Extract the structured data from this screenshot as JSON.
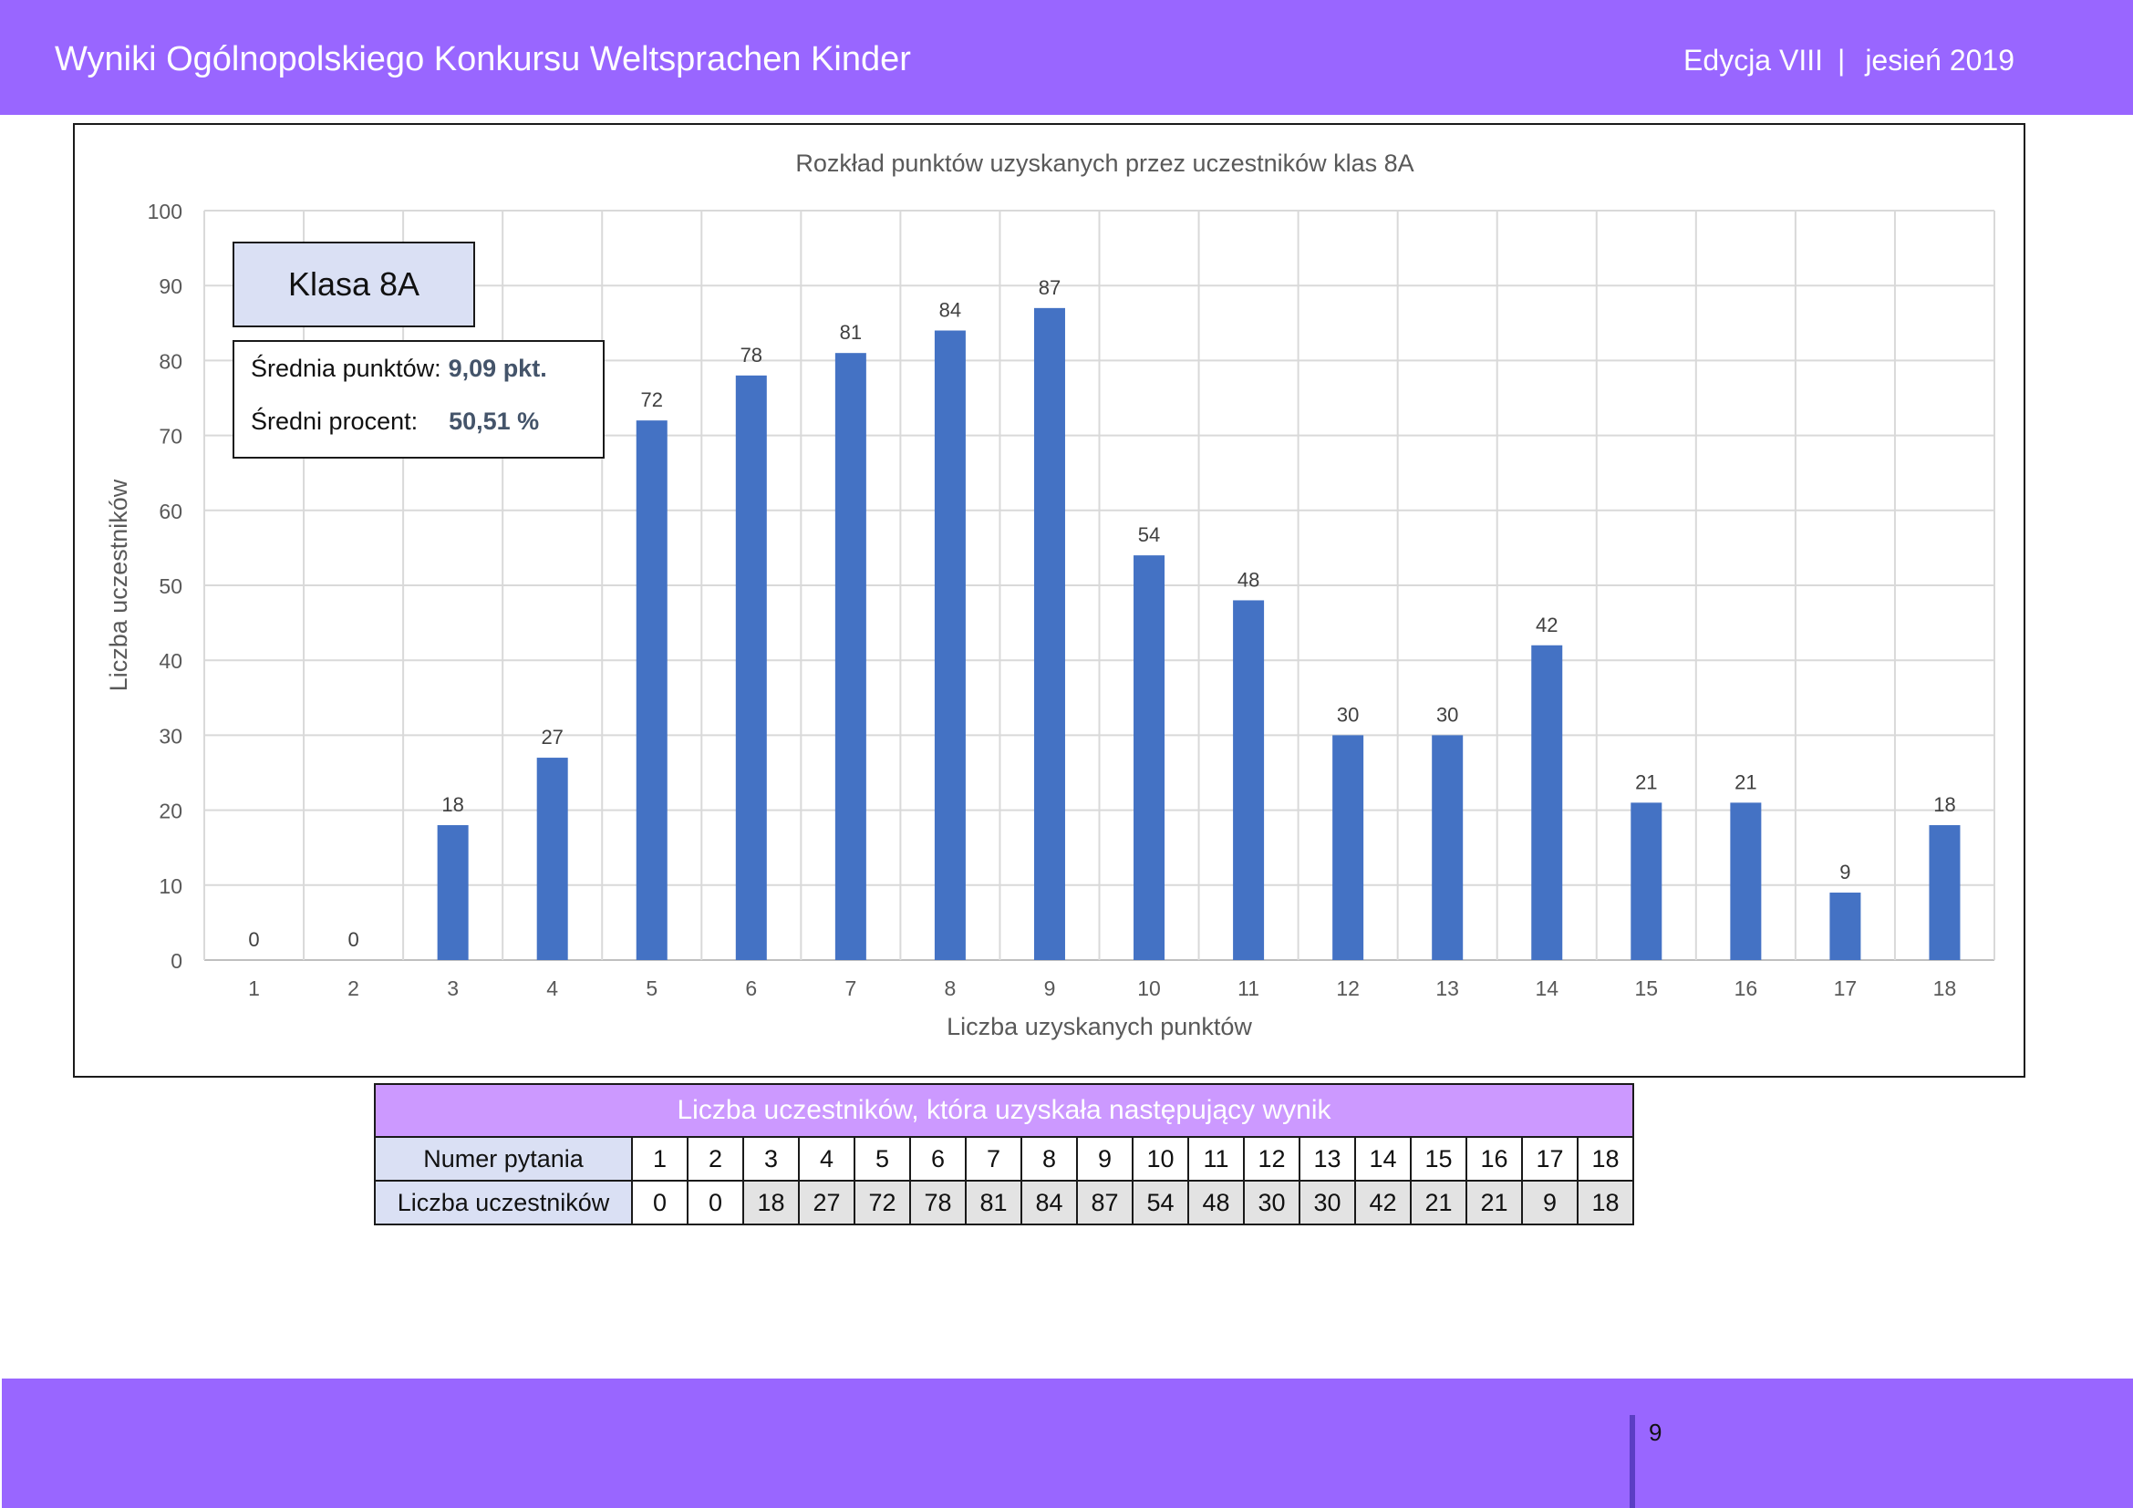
{
  "header": {
    "title": "Wyniki Ogólnopolskiego Konkursu Weltsprachen Kinder",
    "edition": "Edycja VIII",
    "season": "jesień 2019"
  },
  "class_box": {
    "label": "Klasa 8A"
  },
  "stats": {
    "avg_points_label": "Średnia punktów:",
    "avg_points_value": "9,09 pkt.",
    "avg_percent_label": "Średni procent:",
    "avg_percent_value": "50,51 %"
  },
  "chart_data": {
    "type": "bar",
    "title": "Rozkład punktów uzyskanych przez uczestników klas 8A",
    "xlabel": "Liczba uzyskanych punktów",
    "ylabel": "Liczba uczestników",
    "categories": [
      "1",
      "2",
      "3",
      "4",
      "5",
      "6",
      "7",
      "8",
      "9",
      "10",
      "11",
      "12",
      "13",
      "14",
      "15",
      "16",
      "17",
      "18"
    ],
    "values": [
      0,
      0,
      18,
      27,
      72,
      78,
      81,
      84,
      87,
      54,
      48,
      30,
      30,
      42,
      21,
      21,
      9,
      18
    ],
    "ylim": [
      0,
      100
    ],
    "yticks": [
      0,
      10,
      20,
      30,
      40,
      50,
      60,
      70,
      80,
      90,
      100
    ],
    "grid": true,
    "data_labels": true,
    "bar_color": "#4472c4"
  },
  "table": {
    "title": "Liczba uczestników, która uzyskała następujący wynik",
    "row1_label": "Numer pytania",
    "row2_label": "Liczba uczestników",
    "numbers": [
      "1",
      "2",
      "3",
      "4",
      "5",
      "6",
      "7",
      "8",
      "9",
      "10",
      "11",
      "12",
      "13",
      "14",
      "15",
      "16",
      "17",
      "18"
    ],
    "counts": [
      "0",
      "0",
      "18",
      "27",
      "72",
      "78",
      "81",
      "84",
      "87",
      "54",
      "48",
      "30",
      "30",
      "42",
      "21",
      "21",
      "9",
      "18"
    ]
  },
  "footer": {
    "page_number": "9"
  },
  "colors": {
    "header": "#9966ff",
    "table_title": "#cc99ff",
    "label_cells": "#dae0f4",
    "bars": "#4472c4"
  }
}
